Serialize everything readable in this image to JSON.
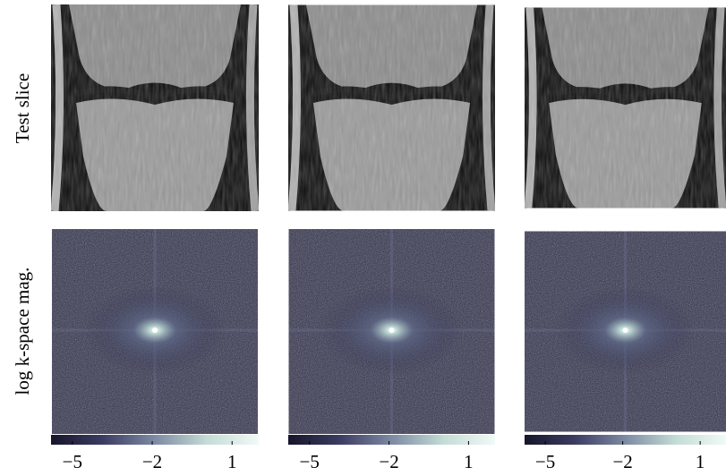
{
  "row_labels": [
    "Test slice",
    "log k-space mag."
  ],
  "colorbars": [
    {
      "lim": [
        -5.8,
        2.0
      ],
      "ticks": [
        {
          "value": -5,
          "label": "−5"
        },
        {
          "value": -2,
          "label": "−2"
        },
        {
          "value": 1,
          "label": "1"
        }
      ],
      "colormap": [
        "#15152b",
        "#3c3c63",
        "#7d8aa3",
        "#c4dcd6",
        "#f0faf6"
      ]
    },
    {
      "lim": [
        -5.8,
        2.0
      ],
      "ticks": [
        {
          "value": -5,
          "label": "−5"
        },
        {
          "value": -2,
          "label": "−2"
        },
        {
          "value": 1,
          "label": "1"
        }
      ],
      "colormap": [
        "#15152b",
        "#3c3c63",
        "#7d8aa3",
        "#c4dcd6",
        "#f0faf6"
      ]
    },
    {
      "lim": [
        -5.8,
        2.0
      ],
      "ticks": [
        {
          "value": -5,
          "label": "−5"
        },
        {
          "value": -2,
          "label": "−2"
        },
        {
          "value": 1,
          "label": "1"
        }
      ],
      "colormap": [
        "#15152b",
        "#3c3c63",
        "#7d8aa3",
        "#c4dcd6",
        "#f0faf6"
      ]
    }
  ]
}
